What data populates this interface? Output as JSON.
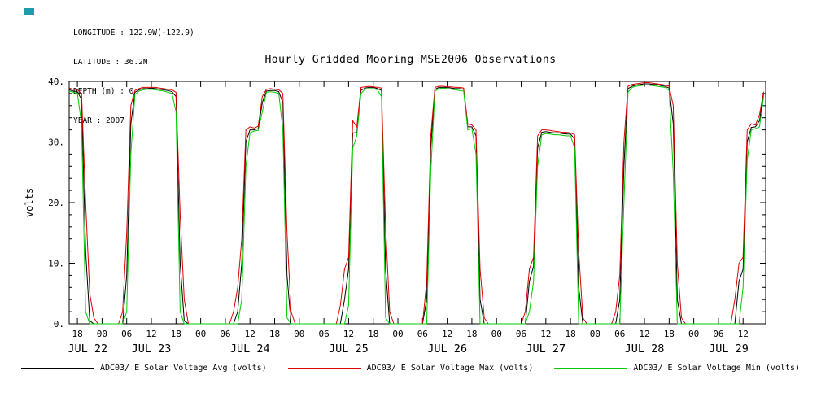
{
  "title": "Hourly Gridded Mooring MSE2006 Observations",
  "header": {
    "longitude": "LONGITUDE : 122.9W(-122.9)",
    "latitude": "LATITUDE : 36.2N",
    "depth": "DEPTH (m) : 0",
    "year": "YEAR : 2007"
  },
  "colors": {
    "swatch": "#1f9bac",
    "avg": "#000000",
    "max": "#dd0000",
    "min": "#00cc00"
  },
  "chart_data": {
    "type": "line",
    "title": "Hourly Gridded Mooring MSE2006 Observations",
    "ylabel": "volts",
    "ylim": [
      0,
      40
    ],
    "yticks": [
      0,
      10,
      20,
      30,
      40
    ],
    "ytick_labels": [
      "0.",
      "10.",
      "20.",
      "30.",
      "40."
    ],
    "xlim": [
      16,
      185.5
    ],
    "x_origin": "2007-07-22 00:00",
    "x_start_hour": 16,
    "x_step_hours": 1,
    "xtick_hours": [
      18,
      24,
      30,
      36,
      42,
      48,
      54,
      60,
      66,
      72,
      78,
      84,
      90,
      96,
      102,
      108,
      114,
      120,
      126,
      132,
      138,
      144,
      150,
      156,
      162,
      168,
      174,
      180
    ],
    "xtick_labels": [
      "18",
      "00",
      "06",
      "12",
      "18",
      "00",
      "06",
      "12",
      "18",
      "00",
      "06",
      "12",
      "18",
      "00",
      "06",
      "12",
      "18",
      "00",
      "06",
      "12",
      "18",
      "00",
      "06",
      "12",
      "18",
      "00",
      "06",
      "12"
    ],
    "day_labels": [
      {
        "label": "JUL 22",
        "hour": 20.5
      },
      {
        "label": "JUL 23",
        "hour": 36
      },
      {
        "label": "JUL 24",
        "hour": 60
      },
      {
        "label": "JUL 25",
        "hour": 84
      },
      {
        "label": "JUL 26",
        "hour": 108
      },
      {
        "label": "JUL 27",
        "hour": 132
      },
      {
        "label": "JUL 28",
        "hour": 156
      },
      {
        "label": "JUL 29",
        "hour": 176.5
      }
    ],
    "legend_position": "bottom",
    "grid": false,
    "series": [
      {
        "key": "avg",
        "name": "ADC03/ E Solar Voltage Avg (volts)",
        "color": "#000000",
        "values": [
          38.6,
          38.4,
          38.3,
          37.0,
          12.0,
          0.5,
          0,
          0,
          0,
          0,
          0,
          0,
          0,
          0,
          8,
          33,
          38.2,
          38.6,
          38.8,
          38.8,
          38.9,
          38.8,
          38.7,
          38.6,
          38.5,
          38.3,
          37.5,
          10,
          0.5,
          0,
          0,
          0,
          0,
          0,
          0,
          0,
          0,
          0,
          0,
          0,
          0,
          2,
          10,
          30,
          32,
          32,
          32.2,
          36.5,
          38.4,
          38.5,
          38.5,
          38.3,
          36.5,
          8,
          0,
          0,
          0,
          0,
          0,
          0,
          0,
          0,
          0,
          0,
          0,
          0,
          0,
          4,
          9,
          31.5,
          31.5,
          38.5,
          38.9,
          39.0,
          39.0,
          38.8,
          38.5,
          9,
          0,
          0,
          0,
          0,
          0,
          0,
          0,
          0,
          0,
          4,
          29,
          38.7,
          39.0,
          39.0,
          39.0,
          38.9,
          38.8,
          38.8,
          38.7,
          32.5,
          32.5,
          31.0,
          4,
          0,
          0,
          0,
          0,
          0,
          0,
          0,
          0,
          0,
          0,
          0,
          7,
          9.5,
          29,
          31.6,
          31.7,
          31.6,
          31.5,
          31.5,
          31.4,
          31.3,
          31.3,
          30.5,
          6,
          0,
          0,
          0,
          0,
          0,
          0,
          0,
          0,
          0,
          4,
          26,
          38.8,
          39.2,
          39.4,
          39.5,
          39.6,
          39.6,
          39.5,
          39.5,
          39.3,
          39.2,
          38.9,
          33,
          4,
          0,
          0,
          0,
          0,
          0,
          0,
          0,
          0,
          0,
          0,
          0,
          0,
          0,
          0,
          7,
          9,
          30,
          32.4,
          32.5,
          33.5,
          38.0
        ]
      },
      {
        "key": "max",
        "name": "ADC03/ E Solar Voltage Max (volts)",
        "color": "#dd0000",
        "values": [
          38.9,
          38.7,
          38.6,
          38.0,
          20,
          5,
          1,
          0,
          0,
          0,
          0,
          0,
          0,
          2,
          15,
          36,
          38.5,
          38.8,
          39.0,
          39.0,
          39.0,
          39.0,
          38.9,
          38.8,
          38.7,
          38.6,
          38.2,
          18,
          4,
          0,
          0,
          0,
          0,
          0,
          0,
          0,
          0,
          0,
          0,
          0,
          2,
          6,
          14,
          32,
          32.5,
          32.3,
          32.6,
          37.5,
          38.7,
          38.8,
          38.7,
          38.6,
          38.0,
          15,
          2,
          0,
          0,
          0,
          0,
          0,
          0,
          0,
          0,
          0,
          0,
          0,
          3,
          9,
          11,
          33.5,
          32.5,
          39.0,
          39.1,
          39.2,
          39.1,
          39.0,
          38.9,
          16,
          2,
          0,
          0,
          0,
          0,
          0,
          0,
          0,
          0,
          7,
          31,
          39.0,
          39.2,
          39.2,
          39.1,
          39.1,
          39.0,
          39.0,
          38.9,
          33.0,
          32.8,
          32.0,
          9,
          1,
          0,
          0,
          0,
          0,
          0,
          0,
          0,
          0,
          0,
          2,
          9,
          11,
          31,
          32.0,
          32.0,
          31.9,
          31.8,
          31.7,
          31.6,
          31.6,
          31.5,
          31.2,
          12,
          1,
          0,
          0,
          0,
          0,
          0,
          0,
          0,
          2,
          8,
          30,
          39.2,
          39.5,
          39.6,
          39.7,
          39.8,
          39.8,
          39.7,
          39.6,
          39.5,
          39.4,
          39.2,
          36,
          10,
          1,
          0,
          0,
          0,
          0,
          0,
          0,
          0,
          0,
          0,
          0,
          0,
          0,
          4,
          10,
          11,
          32,
          33.0,
          32.8,
          34.5,
          38.3
        ]
      },
      {
        "key": "min",
        "name": "ADC03/ E Solar Voltage Min (volts)",
        "color": "#00cc00",
        "values": [
          38.4,
          38.2,
          38.0,
          33.0,
          2,
          0,
          0,
          0,
          0,
          0,
          0,
          0,
          0,
          0,
          2,
          28,
          37.8,
          38.4,
          38.6,
          38.7,
          38.7,
          38.6,
          38.5,
          38.4,
          38.2,
          38.0,
          35.0,
          2,
          0,
          0,
          0,
          0,
          0,
          0,
          0,
          0,
          0,
          0,
          0,
          0,
          0,
          0,
          4,
          26,
          31.5,
          31.8,
          31.9,
          35.0,
          38.2,
          38.3,
          38.2,
          38.0,
          32.0,
          1,
          0,
          0,
          0,
          0,
          0,
          0,
          0,
          0,
          0,
          0,
          0,
          0,
          0,
          0,
          3,
          29.0,
          31.0,
          38.0,
          38.7,
          38.8,
          38.8,
          38.6,
          37.5,
          1,
          0,
          0,
          0,
          0,
          0,
          0,
          0,
          0,
          0,
          0,
          25,
          38.4,
          38.8,
          38.9,
          38.8,
          38.7,
          38.6,
          38.5,
          38.4,
          32.0,
          32.2,
          28.0,
          0,
          0,
          0,
          0,
          0,
          0,
          0,
          0,
          0,
          0,
          0,
          0,
          2,
          7,
          26,
          31.2,
          31.4,
          31.3,
          31.2,
          31.2,
          31.1,
          31.0,
          31.0,
          29.0,
          0,
          0,
          0,
          0,
          0,
          0,
          0,
          0,
          0,
          0,
          0,
          20,
          38.2,
          39.0,
          39.2,
          39.3,
          39.4,
          39.4,
          39.3,
          39.2,
          39.1,
          39.0,
          38.5,
          25,
          0,
          0,
          0,
          0,
          0,
          0,
          0,
          0,
          0,
          0,
          0,
          0,
          0,
          0,
          0,
          0,
          6,
          27,
          32.0,
          32.2,
          32.5,
          37.5
        ]
      }
    ]
  }
}
